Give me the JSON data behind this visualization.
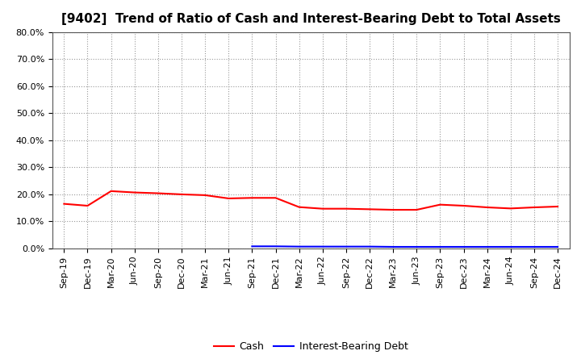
{
  "title": "[9402]  Trend of Ratio of Cash and Interest-Bearing Debt to Total Assets",
  "x_labels": [
    "Sep-19",
    "Dec-19",
    "Mar-20",
    "Jun-20",
    "Sep-20",
    "Dec-20",
    "Mar-21",
    "Jun-21",
    "Sep-21",
    "Dec-21",
    "Mar-22",
    "Jun-22",
    "Sep-22",
    "Dec-22",
    "Mar-23",
    "Jun-23",
    "Sep-23",
    "Dec-23",
    "Mar-24",
    "Jun-24",
    "Sep-24",
    "Dec-24"
  ],
  "cash": [
    0.165,
    0.158,
    0.212,
    0.207,
    0.204,
    0.2,
    0.197,
    0.185,
    0.187,
    0.187,
    0.153,
    0.147,
    0.147,
    0.145,
    0.143,
    0.143,
    0.162,
    0.158,
    0.152,
    0.148,
    0.152,
    0.155
  ],
  "debt": [
    null,
    null,
    null,
    null,
    null,
    null,
    null,
    null,
    0.008,
    0.008,
    0.007,
    0.007,
    0.007,
    0.007,
    0.006,
    0.006,
    0.006,
    0.006,
    0.006,
    0.006,
    0.006,
    0.006
  ],
  "cash_color": "#ff0000",
  "debt_color": "#0000ff",
  "ylim": [
    0,
    0.8
  ],
  "yticks": [
    0.0,
    0.1,
    0.2,
    0.3,
    0.4,
    0.5,
    0.6,
    0.7,
    0.8
  ],
  "background_color": "#ffffff",
  "grid_color": "#999999",
  "title_fontsize": 11,
  "tick_fontsize": 8,
  "legend_labels": [
    "Cash",
    "Interest-Bearing Debt"
  ]
}
